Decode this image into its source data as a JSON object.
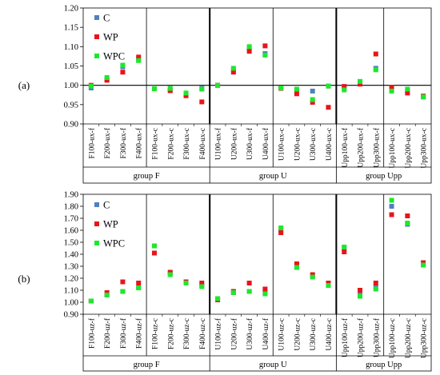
{
  "colors": {
    "C": "#4f81bd",
    "WP": "#e8141b",
    "WPC": "#1ee82c"
  },
  "legend": [
    {
      "key": "C",
      "label": "C"
    },
    {
      "key": "WP",
      "label": "WP"
    },
    {
      "key": "WPC",
      "label": "WPC"
    }
  ],
  "chart_data": [
    {
      "type": "scatter",
      "panel_label": "(a)",
      "title": "",
      "xlabel": "",
      "ylabel": "",
      "ylim": [
        0.9,
        1.2
      ],
      "yticks": [
        "0.90",
        "0.95",
        "1.00",
        "1.05",
        "1.10",
        "1.15",
        "1.20"
      ],
      "grid": false,
      "legend_position": "top-left",
      "reference_line": 1.0,
      "categories": [
        "F100-ux-f",
        "F200-ux-f",
        "F300-ux-f",
        "F400-ux-f",
        "F100-ux-c",
        "F200-ux-c",
        "F300-ux-c",
        "F400-ux-c",
        "U100-ux-f",
        "U200-ux-f",
        "U300-ux-f",
        "U400-ux-f",
        "U100-ux-c",
        "U200-ux-c",
        "U300-ux-c",
        "U400-ux-c",
        "Upp100-ux-f",
        "Upp200-ux-f",
        "Upp300-ux-f",
        "Upp100-ux-c",
        "Upp200-ux-c",
        "Upp300-ux-c"
      ],
      "groups": [
        {
          "label": "group F",
          "count": 8
        },
        {
          "label": "group U",
          "count": 8
        },
        {
          "label": "group Upp",
          "count": 6
        }
      ],
      "series": [
        {
          "name": "C",
          "values": [
            0.993,
            1.015,
            1.048,
            1.067,
            0.991,
            0.988,
            0.977,
            0.992,
            1.0,
            1.04,
            1.096,
            1.082,
            0.993,
            0.987,
            0.985,
            0.998,
            0.993,
            1.007,
            1.044,
            0.987,
            0.985,
            0.97
          ]
        },
        {
          "name": "WP",
          "values": [
            1.0,
            1.013,
            1.034,
            1.073,
            0.991,
            0.986,
            0.973,
            0.957,
            1.0,
            1.034,
            1.088,
            1.102,
            0.992,
            0.978,
            0.956,
            0.943,
            0.997,
            1.003,
            1.081,
            0.995,
            0.98,
            0.972
          ]
        },
        {
          "name": "WPC",
          "values": [
            0.998,
            1.02,
            1.052,
            1.064,
            0.991,
            0.992,
            0.98,
            0.99,
            1.0,
            1.044,
            1.1,
            1.078,
            0.993,
            0.99,
            0.963,
            0.998,
            0.988,
            1.01,
            1.04,
            0.985,
            0.99,
            0.97
          ]
        }
      ]
    },
    {
      "type": "scatter",
      "panel_label": "(b)",
      "title": "",
      "xlabel": "",
      "ylabel": "",
      "ylim": [
        0.9,
        1.9
      ],
      "yticks": [
        "0.90",
        "1.00",
        "1.10",
        "1.20",
        "1.30",
        "1.40",
        "1.50",
        "1.60",
        "1.70",
        "1.80",
        "1.90"
      ],
      "grid": false,
      "legend_position": "top-left",
      "categories": [
        "F100-uz-f",
        "F200-uz-f",
        "F300-uz-f",
        "F400-uz-f",
        "F100-uz-c",
        "F200-uz-c",
        "F300-uz-c",
        "F400-uz-c",
        "U100-uz-f",
        "U200-uz-f",
        "U300-uz-f",
        "U400-uz-f",
        "U100-uz-c",
        "U200-uz-c",
        "U300-uz-c",
        "U400-uz-c",
        "Upp100-uz-f",
        "Upp200-uz-f",
        "Upp300-uz-f",
        "Upp100-uz-c",
        "Upp200-uz-c",
        "Upp300-uz-c"
      ],
      "groups": [
        {
          "label": "group F",
          "count": 8
        },
        {
          "label": "group U",
          "count": 8
        },
        {
          "label": "group Upp",
          "count": 6
        }
      ],
      "series": [
        {
          "name": "C",
          "values": [
            1.01,
            1.06,
            1.09,
            1.12,
            1.47,
            1.24,
            1.17,
            1.14,
            1.03,
            1.08,
            1.09,
            1.08,
            1.6,
            1.3,
            1.22,
            1.15,
            1.45,
            1.06,
            1.12,
            1.8,
            1.65,
            1.31
          ]
        },
        {
          "name": "WP",
          "values": [
            1.01,
            1.08,
            1.17,
            1.16,
            1.41,
            1.25,
            1.17,
            1.16,
            1.02,
            1.09,
            1.16,
            1.11,
            1.58,
            1.32,
            1.23,
            1.16,
            1.42,
            1.1,
            1.16,
            1.73,
            1.72,
            1.33
          ]
        },
        {
          "name": "WPC",
          "values": [
            1.01,
            1.06,
            1.09,
            1.12,
            1.47,
            1.23,
            1.16,
            1.13,
            1.03,
            1.08,
            1.09,
            1.07,
            1.62,
            1.29,
            1.21,
            1.14,
            1.46,
            1.05,
            1.11,
            1.85,
            1.66,
            1.31
          ]
        }
      ]
    }
  ]
}
